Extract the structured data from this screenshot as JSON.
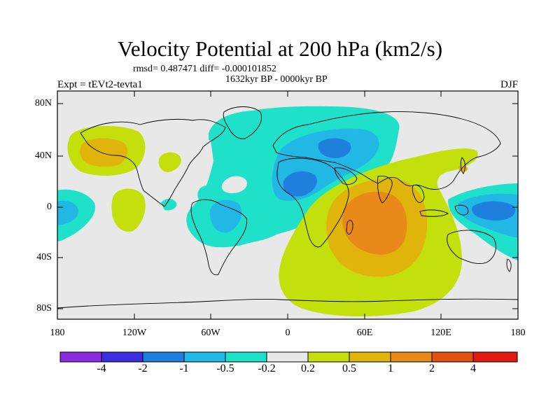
{
  "title": "Velocity Potential at 200 hPa (km2/s)",
  "stats": "rmsd= 0.487471 diff= -0.000101852",
  "period": "1632kyr BP - 0000kyr BP",
  "experiment": "Expt = tEVt2-tevta1",
  "season": "DJF",
  "lat_labels": [
    "80N",
    "40N",
    "0",
    "40S",
    "80S"
  ],
  "lon_labels": [
    "180",
    "120W",
    "60W",
    "0",
    "60E",
    "120E",
    "180"
  ],
  "colorbar": {
    "labels": [
      "-4",
      "-2",
      "-1",
      "-0.5",
      "-0.2",
      "0.2",
      "0.5",
      "1",
      "2",
      "4"
    ],
    "colors": [
      "#8a2be2",
      "#3a2ee0",
      "#1e7fdc",
      "#21b8e6",
      "#1fe0c8",
      "#e8e8e8",
      "#c3e00c",
      "#e0b40a",
      "#e8891a",
      "#e05012",
      "#e01a10"
    ]
  },
  "colors": {
    "background": "#e8e8e8",
    "neg_02": "#1fe0c8",
    "neg_05": "#21b8e6",
    "neg_1": "#1e7fdc",
    "pos_02": "#c3e00c",
    "pos_05": "#e0b40a",
    "pos_1": "#e8891a",
    "pos_2": "#e05012"
  }
}
